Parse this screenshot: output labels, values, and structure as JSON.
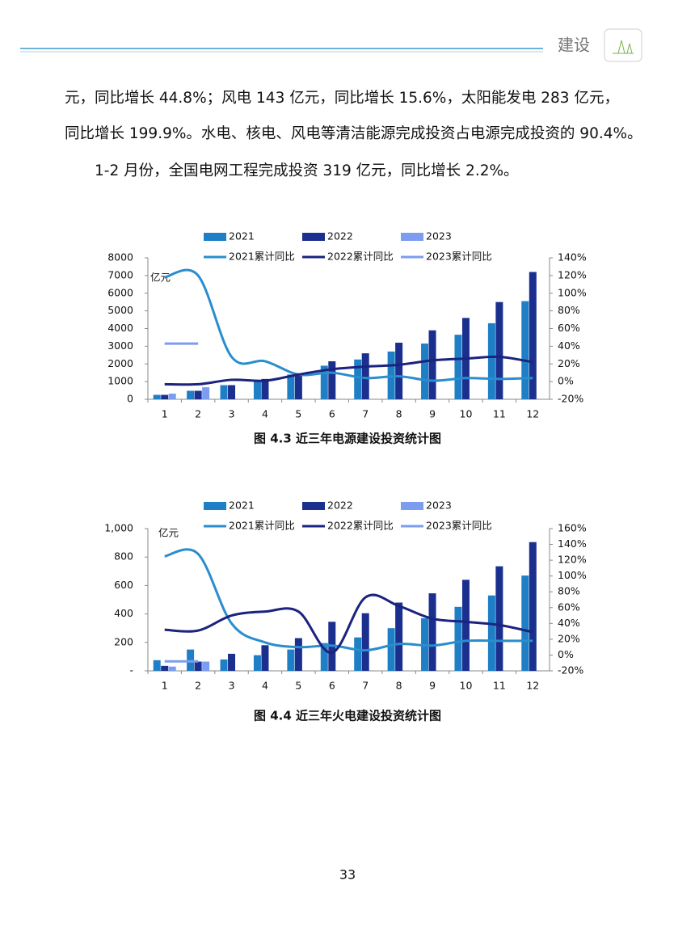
{
  "header": {
    "title": "建设"
  },
  "paragraphs": [
    "元，同比增长 44.8%；风电 143 亿元，同比增长 15.6%，太阳能发电 283 亿元，",
    "同比增长 199.9%。水电、核电、风电等清洁能源完成投资占电源完成投资的 90.4%。",
    "1-2 月份，全国电网工程完成投资 319 亿元，同比增长 2.2%。"
  ],
  "page_number": "33",
  "chart_data": [
    {
      "type": "bar",
      "title": "图 4.3  近三年电源建设投资统计图",
      "y_label": "亿元",
      "categories": [
        "1",
        "2",
        "3",
        "4",
        "5",
        "6",
        "7",
        "8",
        "9",
        "10",
        "11",
        "12"
      ],
      "ylim": [
        0,
        8000
      ],
      "yticks": [
        0,
        1000,
        2000,
        3000,
        4000,
        5000,
        6000,
        7000,
        8000
      ],
      "y2lim": [
        -20,
        140
      ],
      "y2ticks": [
        {
          "value": -20,
          "label": "-20%"
        },
        {
          "value": 0,
          "label": "0%"
        },
        {
          "value": 20,
          "label": "20%"
        },
        {
          "value": 40,
          "label": "40%"
        },
        {
          "value": 60,
          "label": "60%"
        },
        {
          "value": 80,
          "label": "80%"
        },
        {
          "value": 100,
          "label": "100%"
        },
        {
          "value": 120,
          "label": "120%"
        },
        {
          "value": 140,
          "label": "140%"
        }
      ],
      "series": [
        {
          "name": "2021",
          "type": "bar",
          "color": "#1f7fc6",
          "values": [
            250,
            480,
            800,
            1100,
            1400,
            1900,
            2250,
            2700,
            3150,
            3650,
            4300,
            5550
          ]
        },
        {
          "name": "2022",
          "type": "bar",
          "color": "#1b2f8e",
          "values": [
            250,
            480,
            800,
            1150,
            1400,
            2150,
            2600,
            3200,
            3900,
            4600,
            5500,
            7200
          ]
        },
        {
          "name": "2023",
          "type": "bar",
          "color": "#7c9cf0",
          "values": [
            320,
            680,
            null,
            null,
            null,
            null,
            null,
            null,
            null,
            null,
            null,
            null
          ]
        },
        {
          "name": "2021累计同比",
          "type": "line",
          "axis": "y2",
          "color": "#2a8dcd",
          "values": [
            118,
            120,
            28,
            23,
            8,
            10,
            4,
            6,
            1,
            4,
            3,
            4
          ]
        },
        {
          "name": "2022累计同比",
          "type": "line",
          "axis": "y2",
          "color": "#1a237e",
          "values": [
            -3,
            -3,
            2,
            1,
            8,
            14,
            17,
            19,
            24,
            26,
            28,
            22
          ]
        },
        {
          "name": "2023累计同比",
          "type": "line",
          "axis": "y2",
          "color": "#7c9cf0",
          "values": [
            43,
            43,
            null,
            null,
            null,
            null,
            null,
            null,
            null,
            null,
            null,
            null
          ]
        }
      ]
    },
    {
      "type": "bar",
      "title": "图 4.4  近三年火电建设投资统计图",
      "y_label": "亿元",
      "categories": [
        "1",
        "2",
        "3",
        "4",
        "5",
        "6",
        "7",
        "8",
        "9",
        "10",
        "11",
        "12"
      ],
      "ylim": [
        0,
        1000
      ],
      "yticks": [
        {
          "value": 0,
          "label": "-"
        },
        200,
        400,
        600,
        800,
        {
          "value": 1000,
          "label": "1,000"
        }
      ],
      "y2lim": [
        -20,
        160
      ],
      "y2ticks": [
        {
          "value": -20,
          "label": "-20%"
        },
        {
          "value": 0,
          "label": "0%"
        },
        {
          "value": 20,
          "label": "20%"
        },
        {
          "value": 40,
          "label": "40%"
        },
        {
          "value": 60,
          "label": "60%"
        },
        {
          "value": 80,
          "label": "80%"
        },
        {
          "value": 100,
          "label": "100%"
        },
        {
          "value": 120,
          "label": "120%"
        },
        {
          "value": 140,
          "label": "140%"
        },
        {
          "value": 160,
          "label": "160%"
        }
      ],
      "series": [
        {
          "name": "2021",
          "type": "bar",
          "color": "#1f7fc6",
          "values": [
            75,
            150,
            80,
            110,
            150,
            195,
            235,
            300,
            370,
            450,
            530,
            670
          ]
        },
        {
          "name": "2022",
          "type": "bar",
          "color": "#1b2f8e",
          "values": [
            35,
            65,
            120,
            180,
            230,
            345,
            405,
            480,
            545,
            640,
            735,
            905
          ]
        },
        {
          "name": "2023",
          "type": "bar",
          "color": "#7c9cf0",
          "values": [
            30,
            65,
            null,
            null,
            null,
            null,
            null,
            null,
            null,
            null,
            null,
            null
          ]
        },
        {
          "name": "2021累计同比",
          "type": "line",
          "axis": "y2",
          "color": "#2a8dcd",
          "values": [
            125,
            128,
            40,
            16,
            10,
            12,
            6,
            14,
            12,
            18,
            18,
            18
          ]
        },
        {
          "name": "2022累计同比",
          "type": "line",
          "axis": "y2",
          "color": "#1a237e",
          "values": [
            32,
            31,
            50,
            55,
            55,
            3,
            73,
            62,
            46,
            42,
            38,
            29
          ]
        },
        {
          "name": "2023累计同比",
          "type": "line",
          "axis": "y2",
          "color": "#7c9cf0",
          "values": [
            -8,
            -8,
            null,
            null,
            null,
            null,
            null,
            null,
            null,
            null,
            null,
            null
          ]
        }
      ]
    }
  ]
}
